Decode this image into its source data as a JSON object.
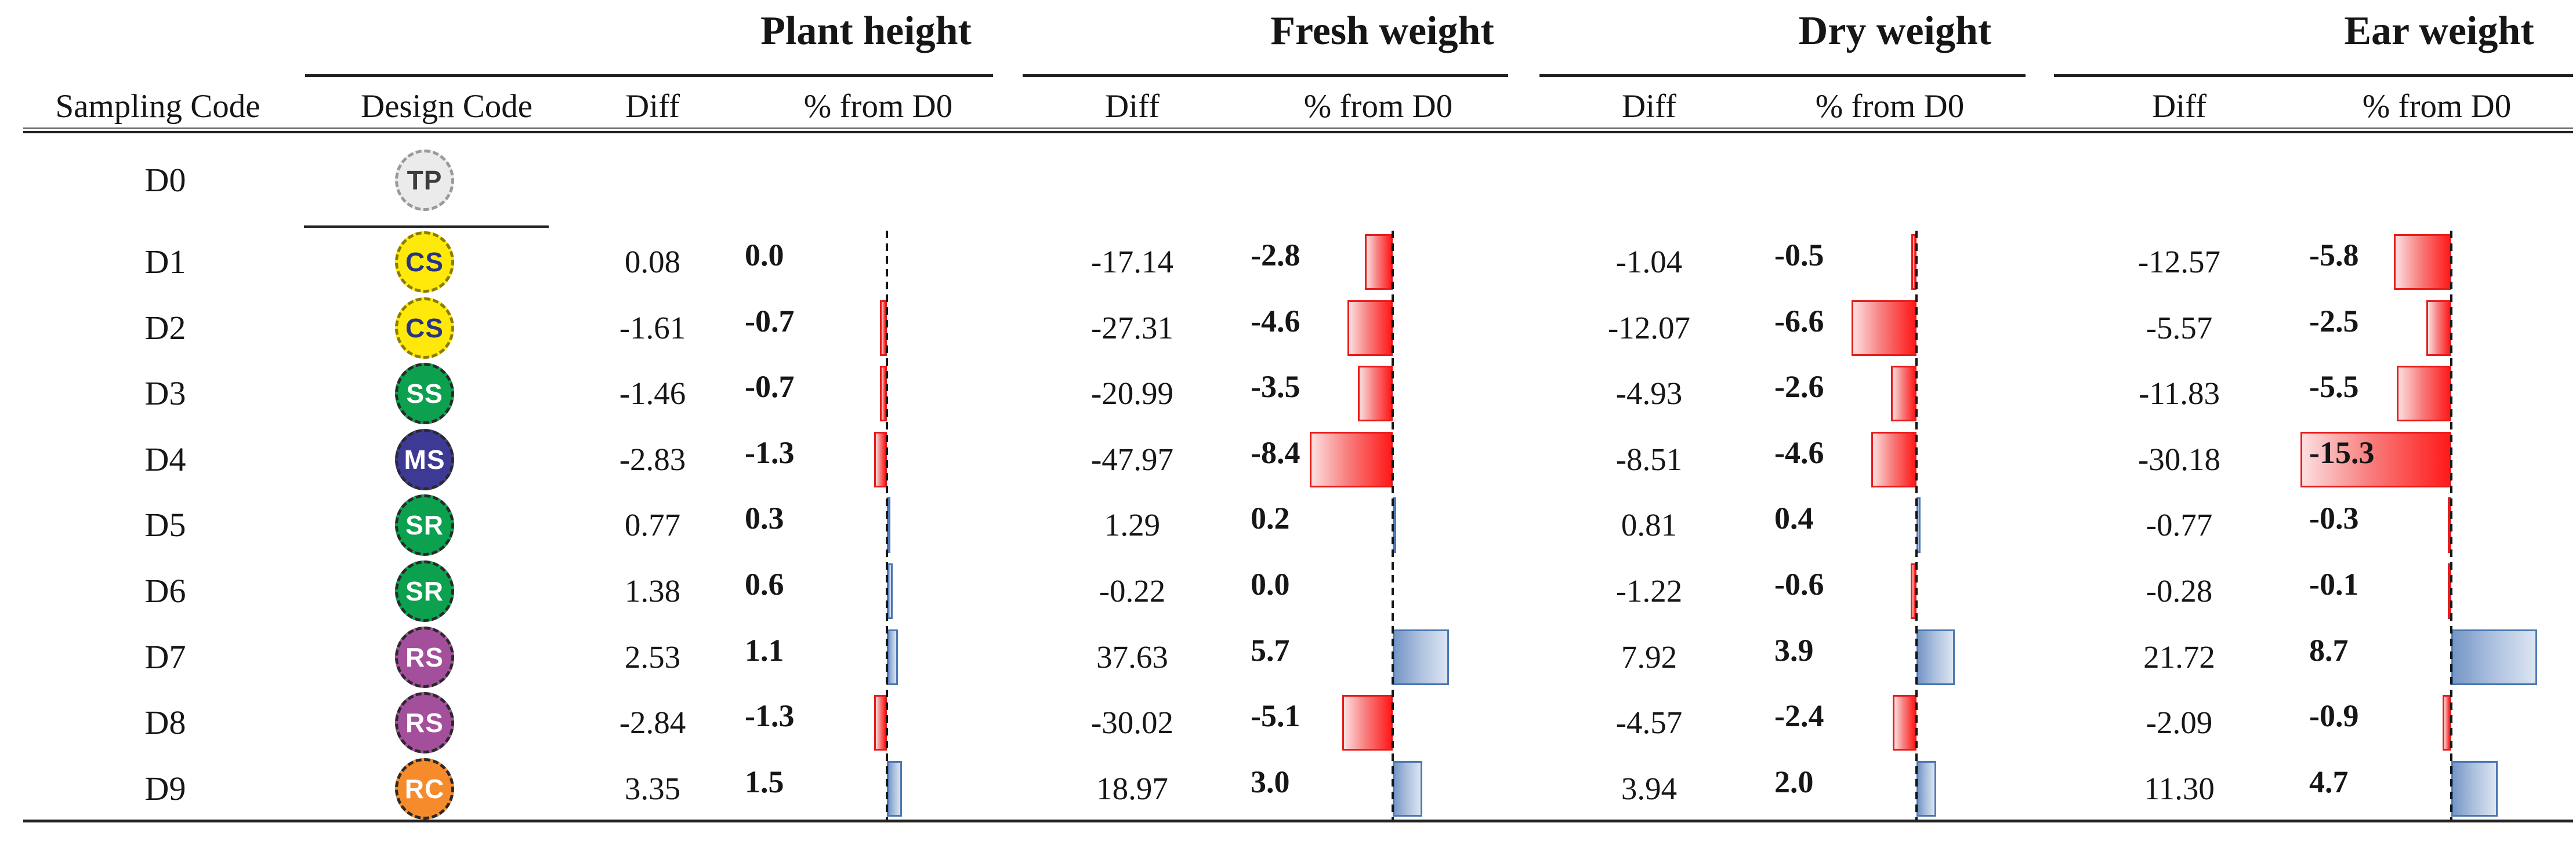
{
  "table": {
    "columns": {
      "sampling": "Sampling Code",
      "design": "Design Code",
      "diff": "Diff",
      "pct": "% from D0"
    },
    "groups": [
      {
        "key": "ph",
        "title": "Plant height"
      },
      {
        "key": "fw",
        "title": "Fresh weight"
      },
      {
        "key": "dw",
        "title": "Dry weight"
      },
      {
        "key": "ew",
        "title": "Ear weight"
      }
    ],
    "rows": [
      {
        "code": "D0",
        "design": "TP",
        "cells": {
          "ph": null,
          "fw": null,
          "dw": null,
          "ew": null
        }
      },
      {
        "code": "D1",
        "design": "CS",
        "cells": {
          "ph": {
            "diff": "0.08",
            "pct": "0.0"
          },
          "fw": {
            "diff": "-17.14",
            "pct": "-2.8"
          },
          "dw": {
            "diff": "-1.04",
            "pct": "-0.5"
          },
          "ew": {
            "diff": "-12.57",
            "pct": "-5.8"
          }
        }
      },
      {
        "code": "D2",
        "design": "CS",
        "cells": {
          "ph": {
            "diff": "-1.61",
            "pct": "-0.7"
          },
          "fw": {
            "diff": "-27.31",
            "pct": "-4.6"
          },
          "dw": {
            "diff": "-12.07",
            "pct": "-6.6"
          },
          "ew": {
            "diff": "-5.57",
            "pct": "-2.5"
          }
        }
      },
      {
        "code": "D3",
        "design": "SS",
        "cells": {
          "ph": {
            "diff": "-1.46",
            "pct": "-0.7"
          },
          "fw": {
            "diff": "-20.99",
            "pct": "-3.5"
          },
          "dw": {
            "diff": "-4.93",
            "pct": "-2.6"
          },
          "ew": {
            "diff": "-11.83",
            "pct": "-5.5"
          }
        }
      },
      {
        "code": "D4",
        "design": "MS",
        "cells": {
          "ph": {
            "diff": "-2.83",
            "pct": "-1.3"
          },
          "fw": {
            "diff": "-47.97",
            "pct": "-8.4"
          },
          "dw": {
            "diff": "-8.51",
            "pct": "-4.6"
          },
          "ew": {
            "diff": "-30.18",
            "pct": "-15.3"
          }
        }
      },
      {
        "code": "D5",
        "design": "SR",
        "cells": {
          "ph": {
            "diff": "0.77",
            "pct": "0.3"
          },
          "fw": {
            "diff": "1.29",
            "pct": "0.2"
          },
          "dw": {
            "diff": "0.81",
            "pct": "0.4"
          },
          "ew": {
            "diff": "-0.77",
            "pct": "-0.3"
          }
        }
      },
      {
        "code": "D6",
        "design": "SR",
        "cells": {
          "ph": {
            "diff": "1.38",
            "pct": "0.6"
          },
          "fw": {
            "diff": "-0.22",
            "pct": "0.0"
          },
          "dw": {
            "diff": "-1.22",
            "pct": "-0.6"
          },
          "ew": {
            "diff": "-0.28",
            "pct": "-0.1"
          }
        }
      },
      {
        "code": "D7",
        "design": "RS",
        "cells": {
          "ph": {
            "diff": "2.53",
            "pct": "1.1"
          },
          "fw": {
            "diff": "37.63",
            "pct": "5.7"
          },
          "dw": {
            "diff": "7.92",
            "pct": "3.9"
          },
          "ew": {
            "diff": "21.72",
            "pct": "8.7"
          }
        }
      },
      {
        "code": "D8",
        "design": "RS",
        "cells": {
          "ph": {
            "diff": "-2.84",
            "pct": "-1.3"
          },
          "fw": {
            "diff": "-30.02",
            "pct": "-5.1"
          },
          "dw": {
            "diff": "-4.57",
            "pct": "-2.4"
          },
          "ew": {
            "diff": "-2.09",
            "pct": "-0.9"
          }
        }
      },
      {
        "code": "D9",
        "design": "RC",
        "cells": {
          "ph": {
            "diff": "3.35",
            "pct": "1.5"
          },
          "fw": {
            "diff": "18.97",
            "pct": "3.0"
          },
          "dw": {
            "diff": "3.94",
            "pct": "2.0"
          },
          "ew": {
            "diff": "11.30",
            "pct": "4.7"
          }
        }
      }
    ],
    "design_codes": {
      "TP": {
        "bg": "#ebebeb",
        "fg": "#3d3d3d",
        "border": "#9a9a9a"
      },
      "CS": {
        "bg": "#ffe90a",
        "fg": "#273386",
        "border": "#8a7d00"
      },
      "SS": {
        "bg": "#0ba14e",
        "fg": "#ffffff",
        "border": "#2a2a2a"
      },
      "MS": {
        "bg": "#3d3a96",
        "fg": "#ffffff",
        "border": "#2a2a2a"
      },
      "SR": {
        "bg": "#0ba14e",
        "fg": "#ffffff",
        "border": "#2a2a2a"
      },
      "RS": {
        "bg": "#a44f9c",
        "fg": "#ffffff",
        "border": "#2a2a2a"
      },
      "RC": {
        "bg": "#f68b2c",
        "fg": "#ffffff",
        "border": "#2a2a2a"
      }
    },
    "bar_colors": {
      "negative": "#ff1a1a",
      "negative_border": "#e81b1b",
      "positive": "#7596c6",
      "positive_border": "#4d78b2"
    }
  },
  "chart_data": {
    "type": "bar",
    "title": "Difference and % deviation from D0 per sampling design",
    "categories": [
      "D0",
      "D1",
      "D2",
      "D3",
      "D4",
      "D5",
      "D6",
      "D7",
      "D8",
      "D9"
    ],
    "design_codes": [
      "TP",
      "CS",
      "CS",
      "SS",
      "MS",
      "SR",
      "SR",
      "RS",
      "RS",
      "RC"
    ],
    "groups": [
      "Plant height",
      "Fresh weight",
      "Dry weight",
      "Ear weight"
    ],
    "series": [
      {
        "name": "Plant height Diff",
        "values": [
          null,
          0.08,
          -1.61,
          -1.46,
          -2.83,
          0.77,
          1.38,
          2.53,
          -2.84,
          3.35
        ]
      },
      {
        "name": "Plant height % from D0",
        "values": [
          null,
          0.0,
          -0.7,
          -0.7,
          -1.3,
          0.3,
          0.6,
          1.1,
          -1.3,
          1.5
        ]
      },
      {
        "name": "Fresh weight Diff",
        "values": [
          null,
          -17.14,
          -27.31,
          -20.99,
          -47.97,
          1.29,
          -0.22,
          37.63,
          -30.02,
          18.97
        ]
      },
      {
        "name": "Fresh weight % from D0",
        "values": [
          null,
          -2.8,
          -4.6,
          -3.5,
          -8.4,
          0.2,
          0.0,
          5.7,
          -5.1,
          3.0
        ]
      },
      {
        "name": "Dry weight Diff",
        "values": [
          null,
          -1.04,
          -12.07,
          -4.93,
          -8.51,
          0.81,
          -1.22,
          7.92,
          -4.57,
          3.94
        ]
      },
      {
        "name": "Dry weight % from D0",
        "values": [
          null,
          -0.5,
          -6.6,
          -2.6,
          -4.6,
          0.4,
          -0.6,
          3.9,
          -2.4,
          2.0
        ]
      },
      {
        "name": "Ear weight Diff",
        "values": [
          null,
          -12.57,
          -5.57,
          -11.83,
          -30.18,
          -0.77,
          -0.28,
          21.72,
          -2.09,
          11.3
        ]
      },
      {
        "name": "Ear weight % from D0",
        "values": [
          null,
          -5.8,
          -2.5,
          -5.5,
          -15.3,
          -0.3,
          -0.1,
          8.7,
          -0.9,
          4.7
        ]
      }
    ],
    "layout": {
      "bar_direction": "horizontal",
      "zero_axis": "dashed vertical line per group",
      "negative_color": "red",
      "positive_color": "blue",
      "grid": false,
      "legend": false
    }
  }
}
